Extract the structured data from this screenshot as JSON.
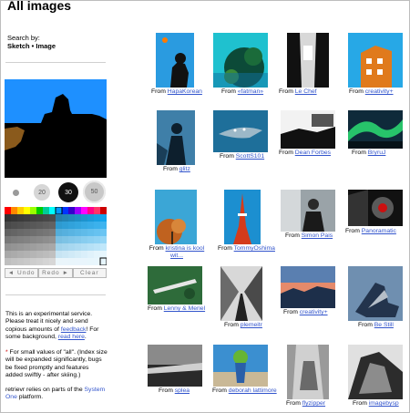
{
  "page": {
    "title": "All images"
  },
  "sidebar": {
    "search_by_label": "Search by:",
    "search_mode": "Sketch • Image",
    "brush_sizes": [
      "20",
      "30",
      "50"
    ],
    "tools": {
      "undo": "◄ Undo",
      "redo": "Redo ►",
      "clear": "Clear"
    },
    "info": {
      "p1_text": "This is an experimental service. Please treat it nicely and send copious amounts of",
      "p1_feedback_link": "feedback",
      "p1_mid": "! For some background,",
      "p1_readhere_link": "read here",
      "p1_end": ".",
      "asterisk": "*",
      "p2_text": "For small values of \"all\". (Index size will be expanded significantly, bugs be fixed promptly and features added swiftly - after skiing.)",
      "p3_text": "retrievr relies on parts of the",
      "p3_link": "System One",
      "p3_end": "platform."
    }
  },
  "results": {
    "from_label": "From",
    "items": [
      {
        "author": "HapaKorean"
      },
      {
        "author": "«fatman»"
      },
      {
        "author": "Le Chef"
      },
      {
        "author": "creativity+"
      },
      {
        "author": "glitz"
      },
      {
        "author": "ScottS101"
      },
      {
        "author": "Dean Forbes"
      },
      {
        "author": "BryruJ"
      },
      {
        "author": "kristina is kool wit..."
      },
      {
        "author": "TommyOshima"
      },
      {
        "author": "Simon Pais"
      },
      {
        "author": "Panoramatic"
      },
      {
        "author": "Lenny & Meriel"
      },
      {
        "author": "plemeitr"
      },
      {
        "author": "creativity+"
      },
      {
        "author": "Be Still"
      },
      {
        "author": "splea"
      },
      {
        "author": "deborah lattimore"
      },
      {
        "author": "flyzipper"
      },
      {
        "author": "imagebysp"
      }
    ]
  },
  "colors": {
    "link": "#3355cc",
    "canvas_sky": "#1e90ff"
  }
}
